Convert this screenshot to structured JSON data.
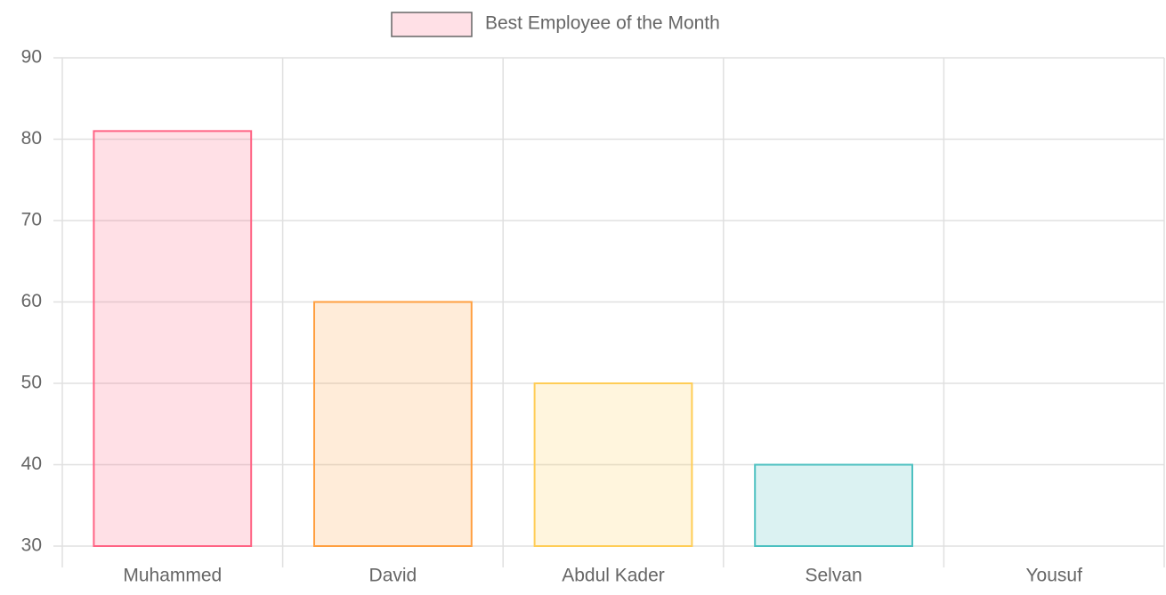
{
  "chart_data": {
    "type": "bar",
    "categories": [
      "Muhammed",
      "David",
      "Abdul Kader",
      "Selvan",
      "Yousuf"
    ],
    "series": [
      {
        "name": "Best Employee of the Month",
        "values": [
          81,
          60,
          50,
          40,
          30
        ],
        "colors": [
          "rgba(255,99,132,0.2)",
          "rgba(255,159,64,0.2)",
          "rgba(255,205,86,0.2)",
          "rgba(75,192,192,0.2)",
          "rgba(54,162,235,0.2)"
        ],
        "border_colors": [
          "rgb(255,99,132)",
          "rgb(255,159,64)",
          "rgb(255,205,86)",
          "rgb(75,192,192)",
          "rgb(54,162,235)"
        ]
      }
    ],
    "ylim": [
      30,
      90
    ],
    "yticks": [
      30,
      40,
      50,
      60,
      70,
      80,
      90
    ],
    "grid": true,
    "legend": "top"
  }
}
